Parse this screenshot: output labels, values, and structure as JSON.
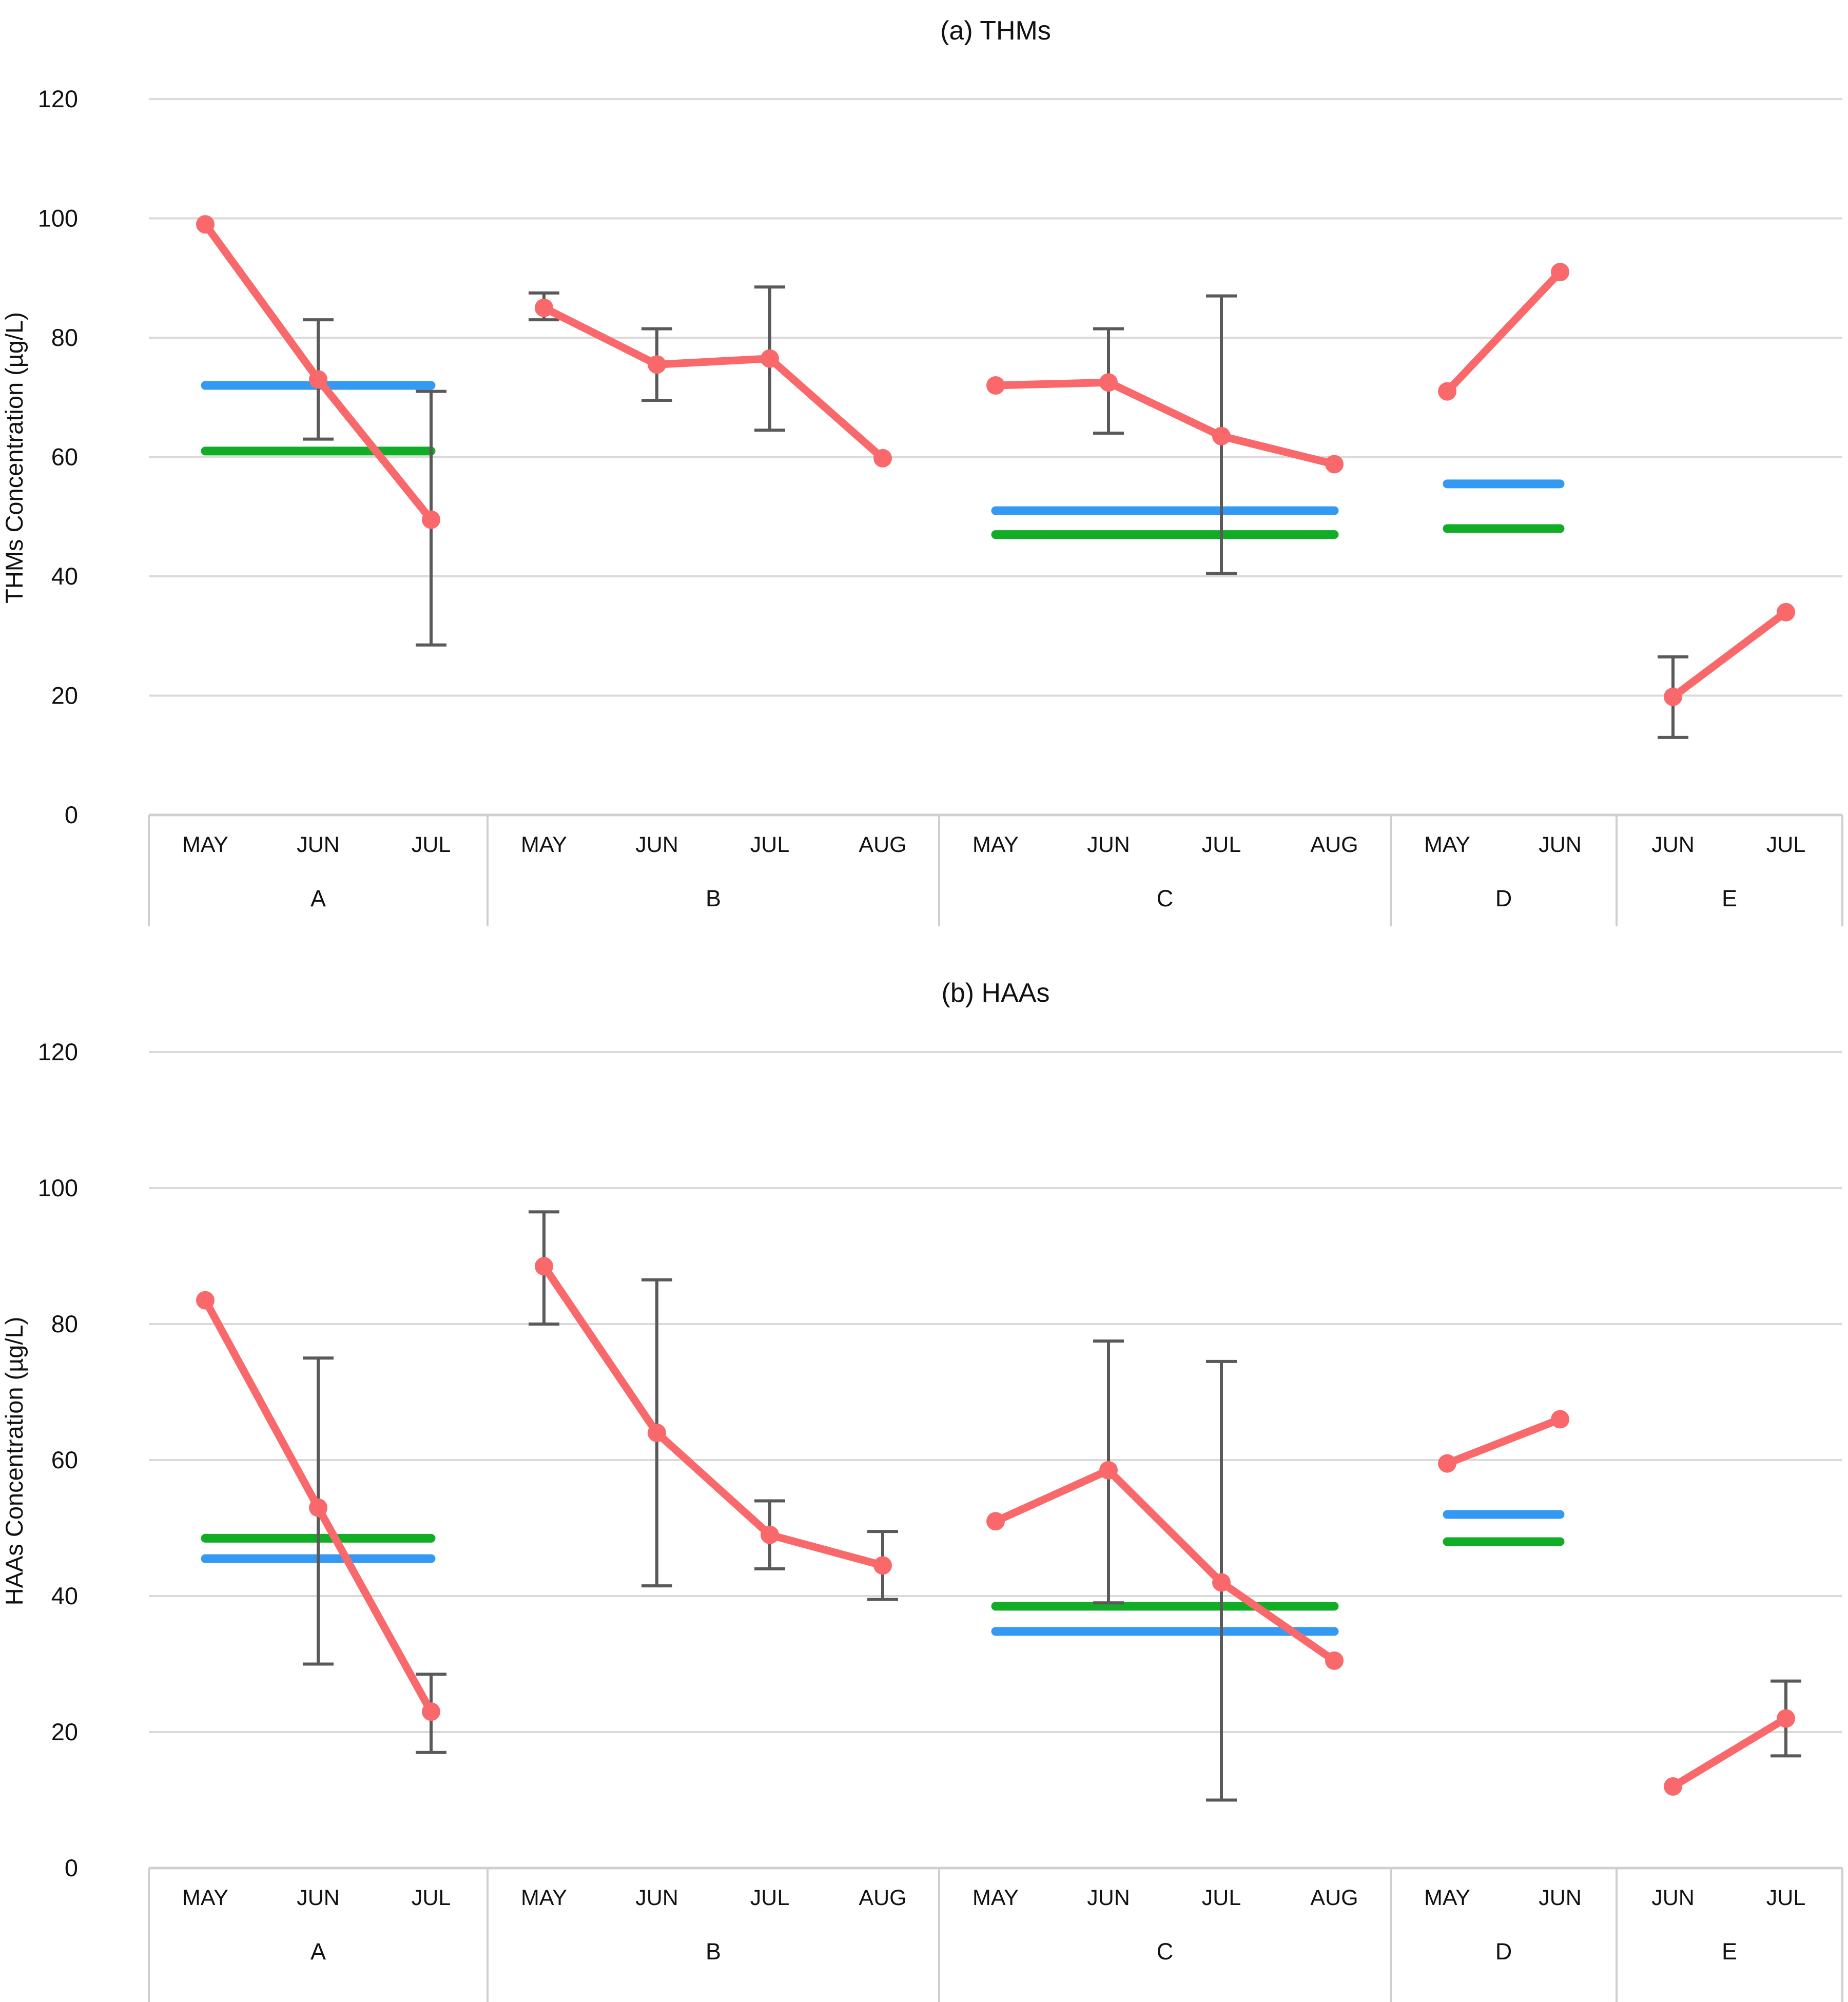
{
  "page": {
    "background": "#ffffff"
  },
  "colors": {
    "series_red": "#F9696B",
    "mean_blue": "#3399F3",
    "mean_green": "#12AD27",
    "error_bar": "#595959",
    "gridline": "#DADADA",
    "axis_band_border": "#CFCFCF",
    "text": "#111111"
  },
  "chart_data": [
    {
      "type": "line",
      "title": "(a) THMs",
      "ylabel": "THMs Concentration (µg/L)",
      "xlabel": "",
      "ylim": [
        0,
        120
      ],
      "yticks": [
        0,
        20,
        40,
        60,
        80,
        100,
        120
      ],
      "grid": true,
      "legend": "none",
      "groups": [
        {
          "label": "A",
          "months": [
            "MAY",
            "JUN",
            "JUL"
          ],
          "red_values": [
            99,
            73,
            49.5
          ],
          "error_bars": [
            null,
            [
              63,
              83
            ],
            [
              28.5,
              71
            ]
          ],
          "blue_line": 72,
          "green_line": 61
        },
        {
          "label": "B",
          "months": [
            "MAY",
            "JUN",
            "JUL",
            "AUG"
          ],
          "red_values": [
            85,
            75.5,
            76.5,
            59.8
          ],
          "error_bars": [
            [
              83,
              87.5
            ],
            [
              69.5,
              81.5
            ],
            [
              64.5,
              88.5
            ],
            null
          ],
          "blue_line": null,
          "green_line": null
        },
        {
          "label": "C",
          "months": [
            "MAY",
            "JUN",
            "JUL",
            "AUG"
          ],
          "red_values": [
            72,
            72.5,
            63.5,
            58.8
          ],
          "error_bars": [
            null,
            [
              64,
              81.5
            ],
            [
              40.5,
              87
            ],
            null
          ],
          "blue_line": 51,
          "green_line": 47
        },
        {
          "label": "D",
          "months": [
            "MAY",
            "JUN"
          ],
          "red_values": [
            71,
            91
          ],
          "error_bars": [
            null,
            null
          ],
          "blue_line": 55.5,
          "green_line": 48
        },
        {
          "label": "E",
          "months": [
            "JUN",
            "JUL"
          ],
          "red_values": [
            19.8,
            34
          ],
          "error_bars": [
            [
              13,
              26.5
            ],
            null
          ],
          "blue_line": null,
          "green_line": null
        }
      ]
    },
    {
      "type": "line",
      "title": "(b) HAAs",
      "ylabel": "HAAs Concentration (µg/L)",
      "xlabel": "",
      "ylim": [
        0,
        120
      ],
      "yticks": [
        0,
        20,
        40,
        60,
        80,
        100,
        120
      ],
      "grid": true,
      "legend": "none",
      "groups": [
        {
          "label": "A",
          "months": [
            "MAY",
            "JUN",
            "JUL"
          ],
          "red_values": [
            83.5,
            53,
            23
          ],
          "error_bars": [
            null,
            [
              30,
              75
            ],
            [
              17,
              28.5
            ]
          ],
          "blue_line": 45.5,
          "green_line": 48.5
        },
        {
          "label": "B",
          "months": [
            "MAY",
            "JUN",
            "JUL",
            "AUG"
          ],
          "red_values": [
            88.5,
            64,
            49,
            44.5
          ],
          "error_bars": [
            [
              80,
              96.5
            ],
            [
              41.5,
              86.5
            ],
            [
              44,
              54
            ],
            [
              39.5,
              49.5
            ]
          ],
          "blue_line": null,
          "green_line": null
        },
        {
          "label": "C",
          "months": [
            "MAY",
            "JUN",
            "JUL",
            "AUG"
          ],
          "red_values": [
            51,
            58.5,
            42,
            30.5
          ],
          "error_bars": [
            null,
            [
              39,
              77.5
            ],
            [
              10,
              74.5
            ],
            null
          ],
          "blue_line": 34.8,
          "green_line": 38.5
        },
        {
          "label": "D",
          "months": [
            "MAY",
            "JUN"
          ],
          "red_values": [
            59.5,
            66
          ],
          "error_bars": [
            null,
            null
          ],
          "blue_line": 52,
          "green_line": 48
        },
        {
          "label": "E",
          "months": [
            "JUN",
            "JUL"
          ],
          "red_values": [
            12,
            22
          ],
          "error_bars": [
            null,
            [
              16.5,
              27.5
            ]
          ],
          "blue_line": null,
          "green_line": null
        }
      ]
    }
  ]
}
